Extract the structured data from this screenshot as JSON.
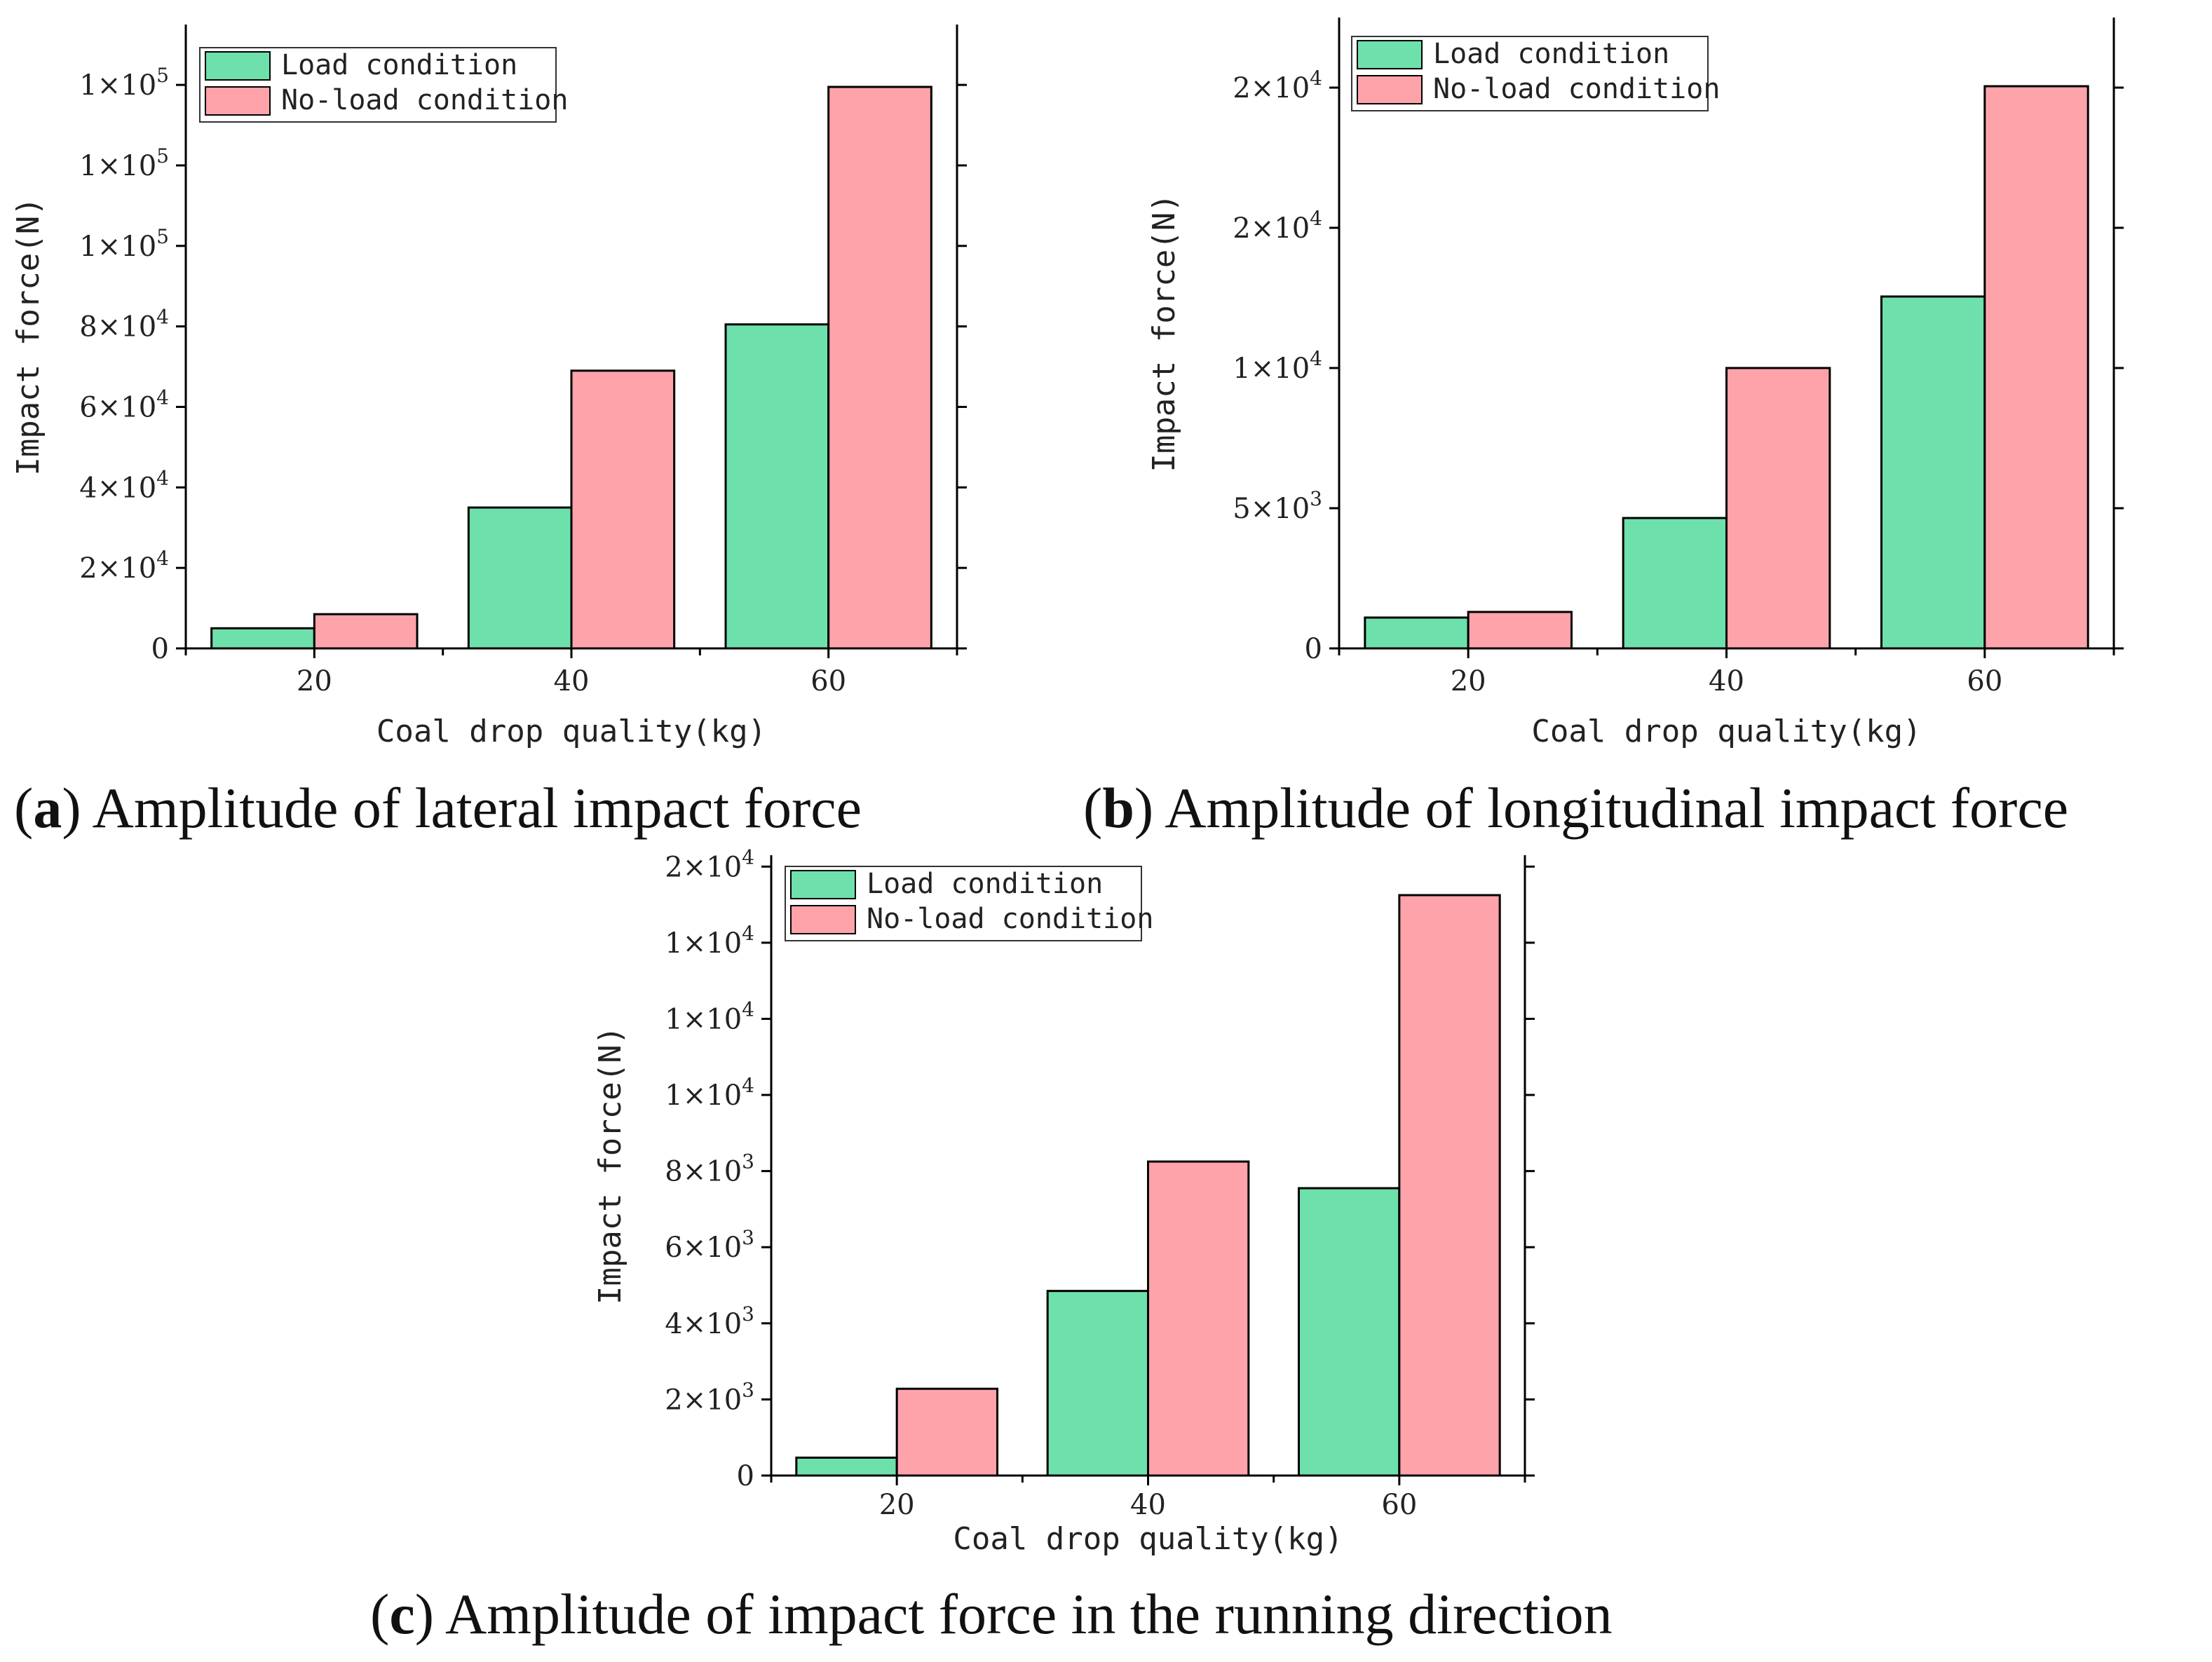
{
  "chart_data": [
    {
      "type": "bar",
      "panel": "a",
      "caption_letter": "a",
      "caption_text": "Amplitude of lateral impact force",
      "categories": [
        "20",
        "40",
        "60"
      ],
      "xlabel": "Coal drop quality(kg)",
      "ylabel": "Impact force(N)",
      "ylim": [
        0,
        155000
      ],
      "yticks": [
        {
          "value": 0,
          "label": "0"
        },
        {
          "value": 20000,
          "label": "2×10",
          "exp": "4"
        },
        {
          "value": 40000,
          "label": "4×10",
          "exp": "4"
        },
        {
          "value": 60000,
          "label": "6×10",
          "exp": "4"
        },
        {
          "value": 80000,
          "label": "8×10",
          "exp": "4"
        },
        {
          "value": 100000,
          "label": "1×10",
          "exp": "5"
        },
        {
          "value": 120000,
          "label": "1×10",
          "exp": "5"
        },
        {
          "value": 140000,
          "label": "1×10",
          "exp": "5"
        }
      ],
      "series": [
        {
          "name": "Load condition",
          "color": "#6ee0ab",
          "values": [
            5000,
            35000,
            80500
          ]
        },
        {
          "name": "No-load condition",
          "color": "#fea3aa",
          "values": [
            8500,
            69000,
            139500
          ]
        }
      ],
      "legend_position": "top-left",
      "grid": false
    },
    {
      "type": "bar",
      "panel": "b",
      "caption_letter": "b",
      "caption_text": "Amplitude of longitudinal impact force",
      "categories": [
        "20",
        "40",
        "60"
      ],
      "xlabel": "Coal drop quality(kg)",
      "ylabel": "Impact force(N)",
      "ylim": [
        0,
        22500
      ],
      "yticks": [
        {
          "value": 0,
          "label": "0"
        },
        {
          "value": 5000,
          "label": "5×10",
          "exp": "3"
        },
        {
          "value": 10000,
          "label": "1×10",
          "exp": "4"
        },
        {
          "value": 15000,
          "label": "2×10",
          "exp": "4"
        },
        {
          "value": 20000,
          "label": "2×10",
          "exp": "4"
        }
      ],
      "series": [
        {
          "name": "Load condition",
          "color": "#6ee0ab",
          "values": [
            1100,
            4650,
            12550
          ]
        },
        {
          "name": "No-load condition",
          "color": "#fea3aa",
          "values": [
            1300,
            10000,
            20050
          ]
        }
      ],
      "legend_position": "top-left",
      "grid": false
    },
    {
      "type": "bar",
      "panel": "c",
      "caption_letter": "c",
      "caption_text": "Amplitude of impact force in the running direction",
      "categories": [
        "20",
        "40",
        "60"
      ],
      "xlabel": "Coal drop quality(kg)",
      "ylabel": "Impact force(N)",
      "ylim": [
        0,
        16300
      ],
      "yticks": [
        {
          "value": 0,
          "label": "0"
        },
        {
          "value": 2000,
          "label": "2×10",
          "exp": "3"
        },
        {
          "value": 4000,
          "label": "4×10",
          "exp": "3"
        },
        {
          "value": 6000,
          "label": "6×10",
          "exp": "3"
        },
        {
          "value": 8000,
          "label": "8×10",
          "exp": "3"
        },
        {
          "value": 10000,
          "label": "1×10",
          "exp": "4"
        },
        {
          "value": 12000,
          "label": "1×10",
          "exp": "4"
        },
        {
          "value": 14000,
          "label": "1×10",
          "exp": "4"
        },
        {
          "value": 16000,
          "label": "2×10",
          "exp": "4"
        }
      ],
      "series": [
        {
          "name": "Load condition",
          "color": "#6ee0ab",
          "values": [
            470,
            4850,
            7550
          ]
        },
        {
          "name": "No-load condition",
          "color": "#fea3aa",
          "values": [
            2280,
            8250,
            15250
          ]
        }
      ],
      "legend_position": "top-left",
      "grid": false
    }
  ]
}
